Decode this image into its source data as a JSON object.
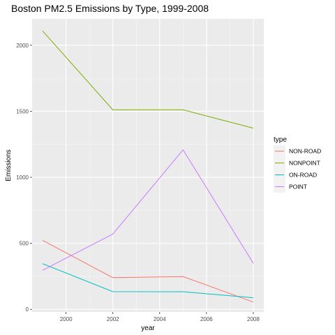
{
  "chart_data": {
    "type": "line",
    "title": "Boston PM2.5 Emissions by Type, 1999-2008",
    "xlabel": "year",
    "ylabel": "Emissions",
    "x": [
      1999,
      2002,
      2005,
      2008
    ],
    "xlim": [
      1998.55,
      2008.45
    ],
    "ylim": [
      -20,
      2200
    ],
    "x_ticks": [
      2000,
      2002,
      2004,
      2006,
      2008
    ],
    "y_ticks": [
      0,
      500,
      1000,
      1500,
      2000
    ],
    "grid": true,
    "legend": {
      "title": "type",
      "position": "right"
    },
    "series": [
      {
        "name": "NON-ROAD",
        "color": "#F8766D",
        "values": [
          522,
          240,
          248,
          55
        ]
      },
      {
        "name": "NONPOINT",
        "color": "#7CAE00",
        "values": [
          2108,
          1511,
          1511,
          1372
        ]
      },
      {
        "name": "ON-ROAD",
        "color": "#00BFC4",
        "values": [
          346,
          134,
          133,
          88
        ]
      },
      {
        "name": "POINT",
        "color": "#C77CFF",
        "values": [
          296,
          570,
          1208,
          349
        ]
      }
    ]
  }
}
